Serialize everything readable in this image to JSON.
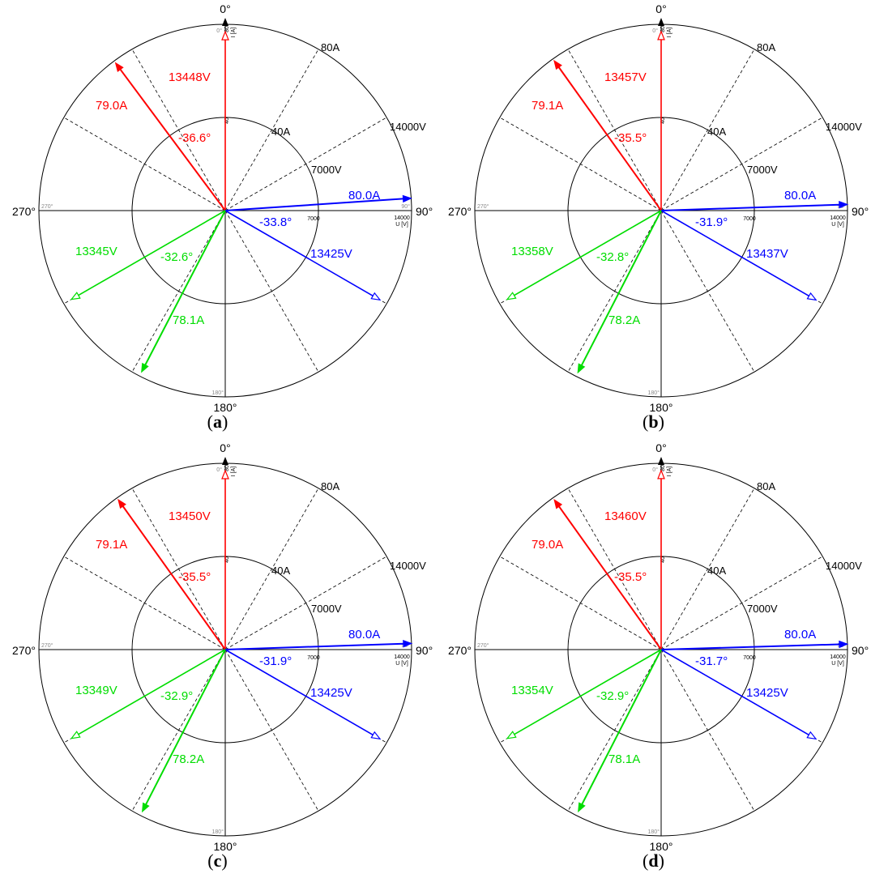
{
  "chart_data": [
    {
      "type": "polar",
      "panel_label": "a",
      "angle_labels": {
        "top": "0°",
        "right": "90°",
        "bottom": "180°",
        "left": "270°"
      },
      "small_angle_labels": {
        "top": "0°",
        "right": "90°",
        "bottom": "180°",
        "left": "270°"
      },
      "current_ring_labels": [
        "40A",
        "80A"
      ],
      "voltage_ring_labels": [
        "7000V",
        "14000V"
      ],
      "current_axis": {
        "unit": "I [A]",
        "ticks": [
          "40",
          "80"
        ]
      },
      "voltage_axis": {
        "unit": "U [V]",
        "ticks": [
          "7000",
          "14000"
        ]
      },
      "current_scale_max": 80,
      "voltage_scale_max": 14000,
      "colors": {
        "red": "#ff0000",
        "blue": "#0000ff",
        "green": "#00dd00",
        "grid": "#000000",
        "faint": "#888888"
      },
      "phasors": [
        {
          "phase": "red",
          "voltage": 13448,
          "voltage_angle": 0,
          "voltage_label": "13448V",
          "current": 79.0,
          "current_angle": -36.6,
          "current_label": "79.0A",
          "angle_label": "-36.6°"
        },
        {
          "phase": "blue",
          "voltage": 13425,
          "voltage_angle": 120,
          "voltage_label": "13425V",
          "current": 80.0,
          "current_angle": 86.2,
          "current_label": "80.0A",
          "angle_label": "-33.8°"
        },
        {
          "phase": "green",
          "voltage": 13345,
          "voltage_angle": 240,
          "voltage_label": "13345V",
          "current": 78.1,
          "current_angle": 207.4,
          "current_label": "78.1A",
          "angle_label": "-32.6°"
        }
      ]
    },
    {
      "type": "polar",
      "panel_label": "b",
      "angle_labels": {
        "top": "0°",
        "right": "90°",
        "bottom": "180°",
        "left": "270°"
      },
      "small_angle_labels": {
        "top": "0°",
        "right": "90°",
        "bottom": "180°",
        "left": "270°"
      },
      "current_ring_labels": [
        "40A",
        "80A"
      ],
      "voltage_ring_labels": [
        "7000V",
        "14000V"
      ],
      "current_axis": {
        "unit": "I [A]",
        "ticks": [
          "40",
          "80"
        ]
      },
      "voltage_axis": {
        "unit": "U [V]",
        "ticks": [
          "7000",
          "14000"
        ]
      },
      "current_scale_max": 80,
      "voltage_scale_max": 14000,
      "colors": {
        "red": "#ff0000",
        "blue": "#0000ff",
        "green": "#00dd00",
        "grid": "#000000",
        "faint": "#888888"
      },
      "phasors": [
        {
          "phase": "red",
          "voltage": 13457,
          "voltage_angle": 0,
          "voltage_label": "13457V",
          "current": 79.1,
          "current_angle": -35.5,
          "current_label": "79.1A",
          "angle_label": "-35.5°"
        },
        {
          "phase": "blue",
          "voltage": 13437,
          "voltage_angle": 120,
          "voltage_label": "13437V",
          "current": 80.0,
          "current_angle": 88.1,
          "current_label": "80.0A",
          "angle_label": "-31.9°"
        },
        {
          "phase": "green",
          "voltage": 13358,
          "voltage_angle": 240,
          "voltage_label": "13358V",
          "current": 78.2,
          "current_angle": 207.2,
          "current_label": "78.2A",
          "angle_label": "-32.8°"
        }
      ]
    },
    {
      "type": "polar",
      "panel_label": "c",
      "angle_labels": {
        "top": "0°",
        "right": "90°",
        "bottom": "180°",
        "left": "270°"
      },
      "small_angle_labels": {
        "top": "0°",
        "right": "90°",
        "bottom": "180°",
        "left": "270°"
      },
      "current_ring_labels": [
        "40A",
        "80A"
      ],
      "voltage_ring_labels": [
        "7000V",
        "14000V"
      ],
      "current_axis": {
        "unit": "I [A]",
        "ticks": [
          "40",
          "80"
        ]
      },
      "voltage_axis": {
        "unit": "U [V]",
        "ticks": [
          "7000",
          "14000"
        ]
      },
      "current_scale_max": 80,
      "voltage_scale_max": 14000,
      "colors": {
        "red": "#ff0000",
        "blue": "#0000ff",
        "green": "#00dd00",
        "grid": "#000000",
        "faint": "#888888"
      },
      "phasors": [
        {
          "phase": "red",
          "voltage": 13450,
          "voltage_angle": 0,
          "voltage_label": "13450V",
          "current": 79.1,
          "current_angle": -35.5,
          "current_label": "79.1A",
          "angle_label": "-35.5°"
        },
        {
          "phase": "blue",
          "voltage": 13425,
          "voltage_angle": 120,
          "voltage_label": "13425V",
          "current": 80.0,
          "current_angle": 88.1,
          "current_label": "80.0A",
          "angle_label": "-31.9°"
        },
        {
          "phase": "green",
          "voltage": 13349,
          "voltage_angle": 240,
          "voltage_label": "13349V",
          "current": 78.2,
          "current_angle": 207.1,
          "current_label": "78.2A",
          "angle_label": "-32.9°"
        }
      ]
    },
    {
      "type": "polar",
      "panel_label": "d",
      "angle_labels": {
        "top": "0°",
        "right": "90°",
        "bottom": "180°",
        "left": "270°"
      },
      "small_angle_labels": {
        "top": "0°",
        "right": "90°",
        "bottom": "180°",
        "left": "270°"
      },
      "current_ring_labels": [
        "40A",
        "80A"
      ],
      "voltage_ring_labels": [
        "7000V",
        "14000V"
      ],
      "current_axis": {
        "unit": "I [A]",
        "ticks": [
          "40",
          "80"
        ]
      },
      "voltage_axis": {
        "unit": "U [V]",
        "ticks": [
          "7000",
          "14000"
        ]
      },
      "current_scale_max": 80,
      "voltage_scale_max": 14000,
      "colors": {
        "red": "#ff0000",
        "blue": "#0000ff",
        "green": "#00dd00",
        "grid": "#000000",
        "faint": "#888888"
      },
      "phasors": [
        {
          "phase": "red",
          "voltage": 13460,
          "voltage_angle": 0,
          "voltage_label": "13460V",
          "current": 79.0,
          "current_angle": -35.5,
          "current_label": "79.0A",
          "angle_label": "-35.5°"
        },
        {
          "phase": "blue",
          "voltage": 13425,
          "voltage_angle": 120,
          "voltage_label": "13425V",
          "current": 80.0,
          "current_angle": 88.3,
          "current_label": "80.0A",
          "angle_label": "-31.7°"
        },
        {
          "phase": "green",
          "voltage": 13354,
          "voltage_angle": 240,
          "voltage_label": "13354V",
          "current": 78.1,
          "current_angle": 207.1,
          "current_label": "78.1A",
          "angle_label": "-32.9°"
        }
      ]
    }
  ]
}
